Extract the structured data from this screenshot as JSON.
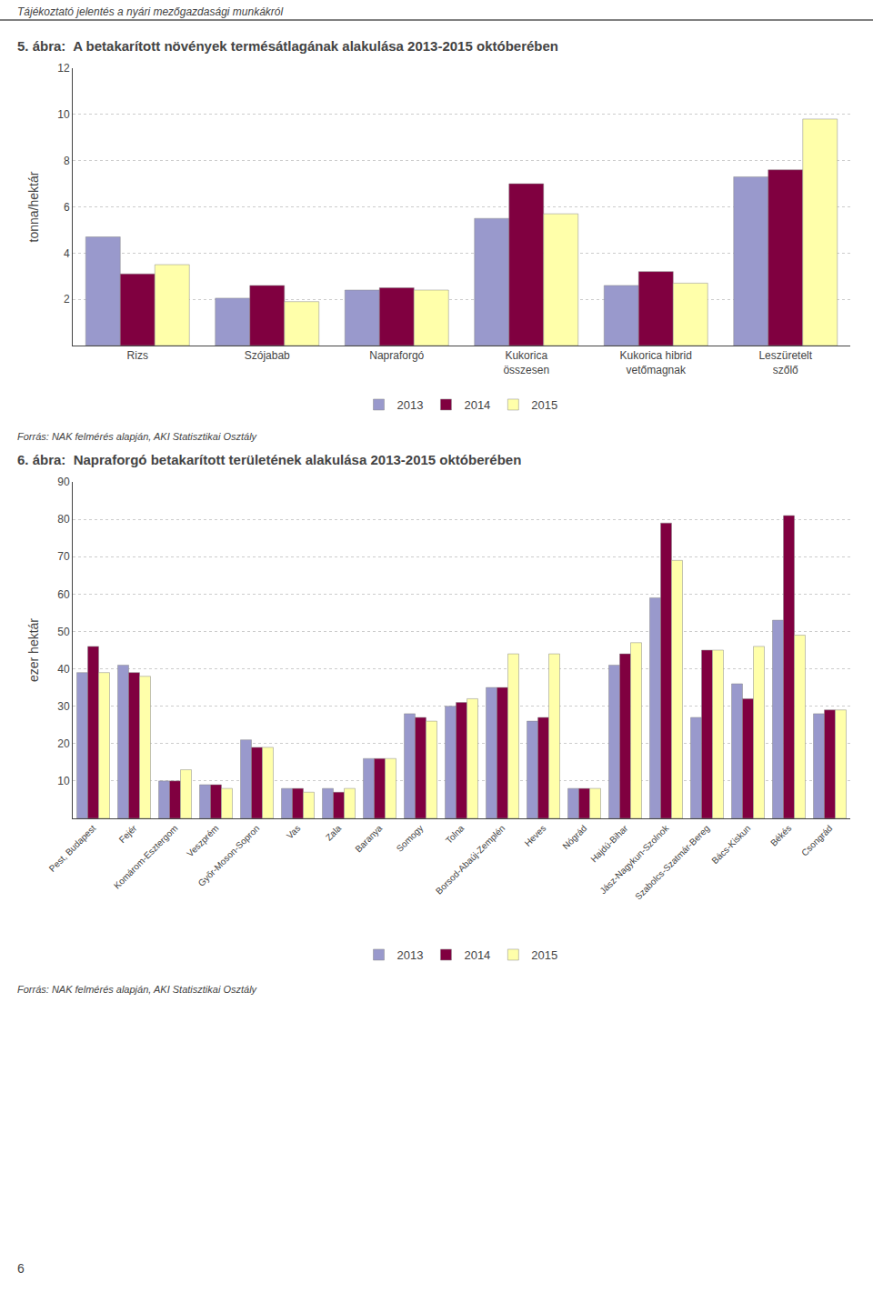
{
  "annotations": [
    "Tájékoztató jelentés a nyári mezőgazdasági munkákról",
    "6"
  ],
  "chart_data": [
    {
      "type": "bar",
      "title": "5. ábra:  A betakarított növények termésátlagának alakulása 2013-2015 októberében",
      "ylabel": "tonna/hektár",
      "categories": [
        "Rizs",
        "Szójabab",
        "Napraforgó",
        "Kukorica\nösszesen",
        "Kukorica hibrid\nvetőmagnak",
        "Leszüretelt\nszőlő"
      ],
      "series": [
        {
          "name": "2013",
          "color": "#9999CC",
          "values": [
            4.7,
            2.05,
            2.4,
            5.5,
            2.6,
            7.3
          ]
        },
        {
          "name": "2014",
          "color": "#800040",
          "values": [
            3.1,
            2.6,
            2.5,
            7.0,
            3.2,
            7.6
          ]
        },
        {
          "name": "2015",
          "color": "#FFFFAA",
          "values": [
            3.5,
            1.9,
            2.4,
            5.7,
            2.7,
            9.8
          ]
        }
      ],
      "ylim": [
        0,
        12
      ],
      "yticks": [
        2,
        4,
        6,
        8,
        10,
        12
      ],
      "grid": true,
      "legend": "bottom",
      "annotations": [
        "Forrás: NAK felmérés alapján, AKI Statisztikai Osztály"
      ]
    },
    {
      "type": "bar",
      "title": "6. ábra:  Napraforgó betakarított területének alakulása 2013-2015 októberében",
      "ylabel": "ezer hektár",
      "categories": [
        "Pest, Budapest",
        "Fejér",
        "Komárom-Esztergom",
        "Veszprém",
        "Győr-Moson-Sopron",
        "Vas",
        "Zala",
        "Baranya",
        "Somogy",
        "Tolna",
        "Borsod-Abaúj-Zemplén",
        "Heves",
        "Nógrád",
        "Hajdú-Bihar",
        "Jász-Nagykun-Szolnok",
        "Szabolcs-Szatmár-Bereg",
        "Bács-Kiskun",
        "Békés",
        "Csongrád"
      ],
      "series": [
        {
          "name": "2013",
          "color": "#9999CC",
          "values": [
            39,
            41,
            10,
            9,
            21,
            8,
            8,
            16,
            28,
            30,
            35,
            26,
            8,
            41,
            59,
            27,
            36,
            53,
            28
          ]
        },
        {
          "name": "2014",
          "color": "#800040",
          "values": [
            46,
            39,
            10,
            9,
            19,
            8,
            7,
            16,
            27,
            31,
            35,
            27,
            8,
            44,
            79,
            45,
            32,
            81,
            29
          ]
        },
        {
          "name": "2015",
          "color": "#FFFFAA",
          "values": [
            39,
            38,
            13,
            8,
            19,
            7,
            8,
            16,
            26,
            32,
            44,
            44,
            8,
            47,
            69,
            45,
            46,
            49,
            29
          ]
        }
      ],
      "ylim": [
        0,
        90
      ],
      "yticks": [
        10,
        20,
        30,
        40,
        50,
        60,
        70,
        80,
        90
      ],
      "grid": true,
      "legend": "bottom",
      "annotations": [
        "Forrás: NAK felmérés alapján, AKI Statisztikai Osztály"
      ]
    }
  ]
}
